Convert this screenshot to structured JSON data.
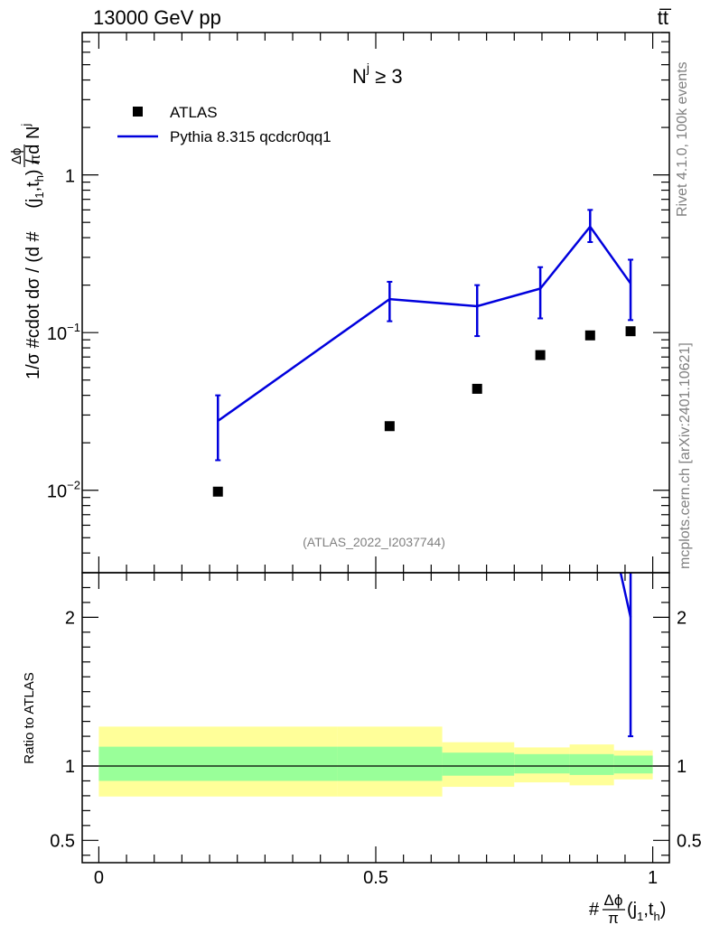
{
  "header": {
    "energy_label": "13000 GeV pp",
    "process_label": "tt̅",
    "side_rivet": "Rivet 4.1.0,  100k events",
    "side_mcplots": "mcplots.cern.ch [arXiv:2401.10621]",
    "analysis_id": "(ATLAS_2022_I2037744)"
  },
  "colors": {
    "mc": "#0000dd",
    "data": "#000000",
    "band_inner": "#99ff99",
    "band_outer": "#ffff99",
    "axis": "#000000"
  },
  "chart_data": [
    {
      "type": "scatter",
      "panel": "main",
      "annotation": {
        "main": "N",
        "sup": "j",
        "rest": " ≥ 3"
      },
      "ylabel": {
        "pre": "1/σ #cdot dσ / (d #",
        "num": "Δϕ",
        "den": "π",
        "arg_open": "(j",
        "arg_sub1": "1",
        "arg_mid": ",t",
        "arg_sub2": "h",
        "post": ") / d N",
        "post_sup": "j"
      },
      "yscale": "log",
      "ylim": [
        0.003,
        8
      ],
      "xlim": [
        -0.03,
        1.03
      ],
      "yticks": [
        {
          "value": 1,
          "base": "1",
          "exp": ""
        },
        {
          "value": 0.1,
          "base": "10",
          "exp": "−1"
        },
        {
          "value": 0.01,
          "base": "10",
          "exp": "−2"
        }
      ],
      "legend": {
        "position": "top-left",
        "entries": [
          {
            "name": "ATLAS",
            "marker": "square"
          },
          {
            "name": "Pythia 8.315 qcdcr0qq1",
            "marker": "line"
          }
        ]
      },
      "series": [
        {
          "name": "ATLAS",
          "x": [
            0.215,
            0.525,
            0.683,
            0.797,
            0.887,
            0.96
          ],
          "y": [
            0.0098,
            0.0255,
            0.044,
            0.072,
            0.096,
            0.102
          ]
        },
        {
          "name": "Pythia 8.315 qcdcr0qq1",
          "x": [
            0.215,
            0.525,
            0.683,
            0.797,
            0.887,
            0.96
          ],
          "y": [
            0.0275,
            0.163,
            0.147,
            0.19,
            0.47,
            0.205
          ],
          "yerr_low": [
            0.0155,
            0.118,
            0.095,
            0.123,
            0.375,
            0.12
          ],
          "yerr_high": [
            0.04,
            0.21,
            0.2,
            0.26,
            0.6,
            0.29
          ]
        }
      ]
    },
    {
      "type": "line",
      "panel": "ratio",
      "ylabel": "Ratio to ATLAS",
      "xlabel": {
        "pre": "#",
        "num": "Δϕ",
        "den": "π",
        "arg_open": "(j",
        "arg_sub1": "1",
        "arg_mid": ",t",
        "arg_sub2": "h",
        "arg_close": ")"
      },
      "xlim": [
        -0.03,
        1.03
      ],
      "ylim": [
        0.35,
        2.3
      ],
      "yticks": [
        {
          "value": 0.5,
          "label": "0.5"
        },
        {
          "value": 1,
          "label": "1"
        },
        {
          "value": 2,
          "label": "2"
        }
      ],
      "xticks": [
        {
          "value": 0,
          "label": "0"
        },
        {
          "value": 0.5,
          "label": "0.5"
        },
        {
          "value": 1,
          "label": "1"
        }
      ],
      "bins": [
        {
          "lo": 0.0,
          "hi": 0.43,
          "inner": [
            0.9,
            1.13
          ],
          "outer": [
            0.795,
            1.265
          ]
        },
        {
          "lo": 0.43,
          "hi": 0.62,
          "inner": [
            0.9,
            1.13
          ],
          "outer": [
            0.795,
            1.265
          ]
        },
        {
          "lo": 0.62,
          "hi": 0.75,
          "inner": [
            0.935,
            1.09
          ],
          "outer": [
            0.86,
            1.16
          ]
        },
        {
          "lo": 0.75,
          "hi": 0.85,
          "inner": [
            0.95,
            1.08
          ],
          "outer": [
            0.89,
            1.125
          ]
        },
        {
          "lo": 0.85,
          "hi": 0.93,
          "inner": [
            0.94,
            1.08
          ],
          "outer": [
            0.87,
            1.145
          ]
        },
        {
          "lo": 0.93,
          "hi": 1.0,
          "inner": [
            0.95,
            1.07
          ],
          "outer": [
            0.91,
            1.105
          ]
        }
      ],
      "series": [
        {
          "name": "Pythia 8.315 qcdcr0qq1 / ATLAS",
          "x": [
            0.96
          ],
          "y": [
            2.0
          ],
          "yerr_low": [
            1.2
          ],
          "yerr_high": [
            2.85
          ],
          "entry_from": [
            0.93,
            2.5
          ]
        }
      ]
    }
  ]
}
